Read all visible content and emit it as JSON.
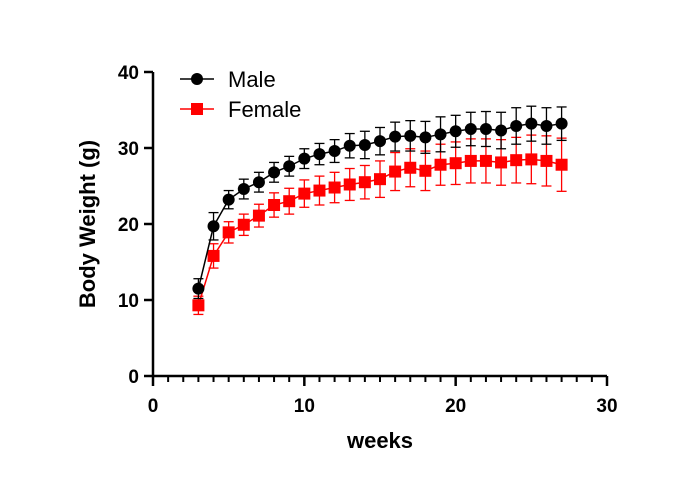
{
  "chart_data": {
    "type": "line",
    "xlabel": "weeks",
    "ylabel": "Body Weight (g)",
    "xlim": [
      0,
      30
    ],
    "ylim": [
      0,
      40
    ],
    "x_ticks": [
      0,
      10,
      20,
      30
    ],
    "y_ticks": [
      0,
      10,
      20,
      30,
      40
    ],
    "x": [
      3,
      4,
      5,
      6,
      7,
      8,
      9,
      10,
      11,
      12,
      13,
      14,
      15,
      16,
      17,
      18,
      19,
      20,
      21,
      22,
      23,
      24,
      25,
      26,
      27
    ],
    "grid": false,
    "legend_position": "top-left",
    "series": [
      {
        "name": "Male",
        "marker": "circle",
        "color": "#000000",
        "values": [
          11.5,
          19.7,
          23.2,
          24.6,
          25.5,
          26.8,
          27.6,
          28.6,
          29.2,
          29.6,
          30.3,
          30.4,
          30.9,
          31.5,
          31.6,
          31.4,
          31.8,
          32.2,
          32.5,
          32.5,
          32.3,
          32.9,
          33.2,
          32.9,
          33.2
        ],
        "errors": [
          1.3,
          1.8,
          1.2,
          1.3,
          1.3,
          1.3,
          1.3,
          1.3,
          1.4,
          1.5,
          1.6,
          1.8,
          1.8,
          1.9,
          2.0,
          2.1,
          2.3,
          2.1,
          2.2,
          2.3,
          2.4,
          2.4,
          2.3,
          2.4,
          2.2
        ]
      },
      {
        "name": "Female",
        "marker": "square",
        "color": "#ff0000",
        "values": [
          9.3,
          15.8,
          18.9,
          19.9,
          21.1,
          22.5,
          23.0,
          24.0,
          24.4,
          24.8,
          25.2,
          25.5,
          25.9,
          26.9,
          27.4,
          27.0,
          27.8,
          28.0,
          28.3,
          28.3,
          28.1,
          28.4,
          28.5,
          28.3,
          27.8
        ],
        "errors": [
          1.2,
          1.6,
          1.4,
          1.4,
          1.5,
          1.6,
          1.7,
          1.8,
          1.9,
          2.0,
          2.1,
          2.2,
          2.4,
          2.5,
          2.5,
          2.6,
          2.7,
          2.8,
          2.9,
          2.9,
          3.0,
          3.0,
          3.2,
          3.3,
          3.5
        ]
      }
    ]
  }
}
